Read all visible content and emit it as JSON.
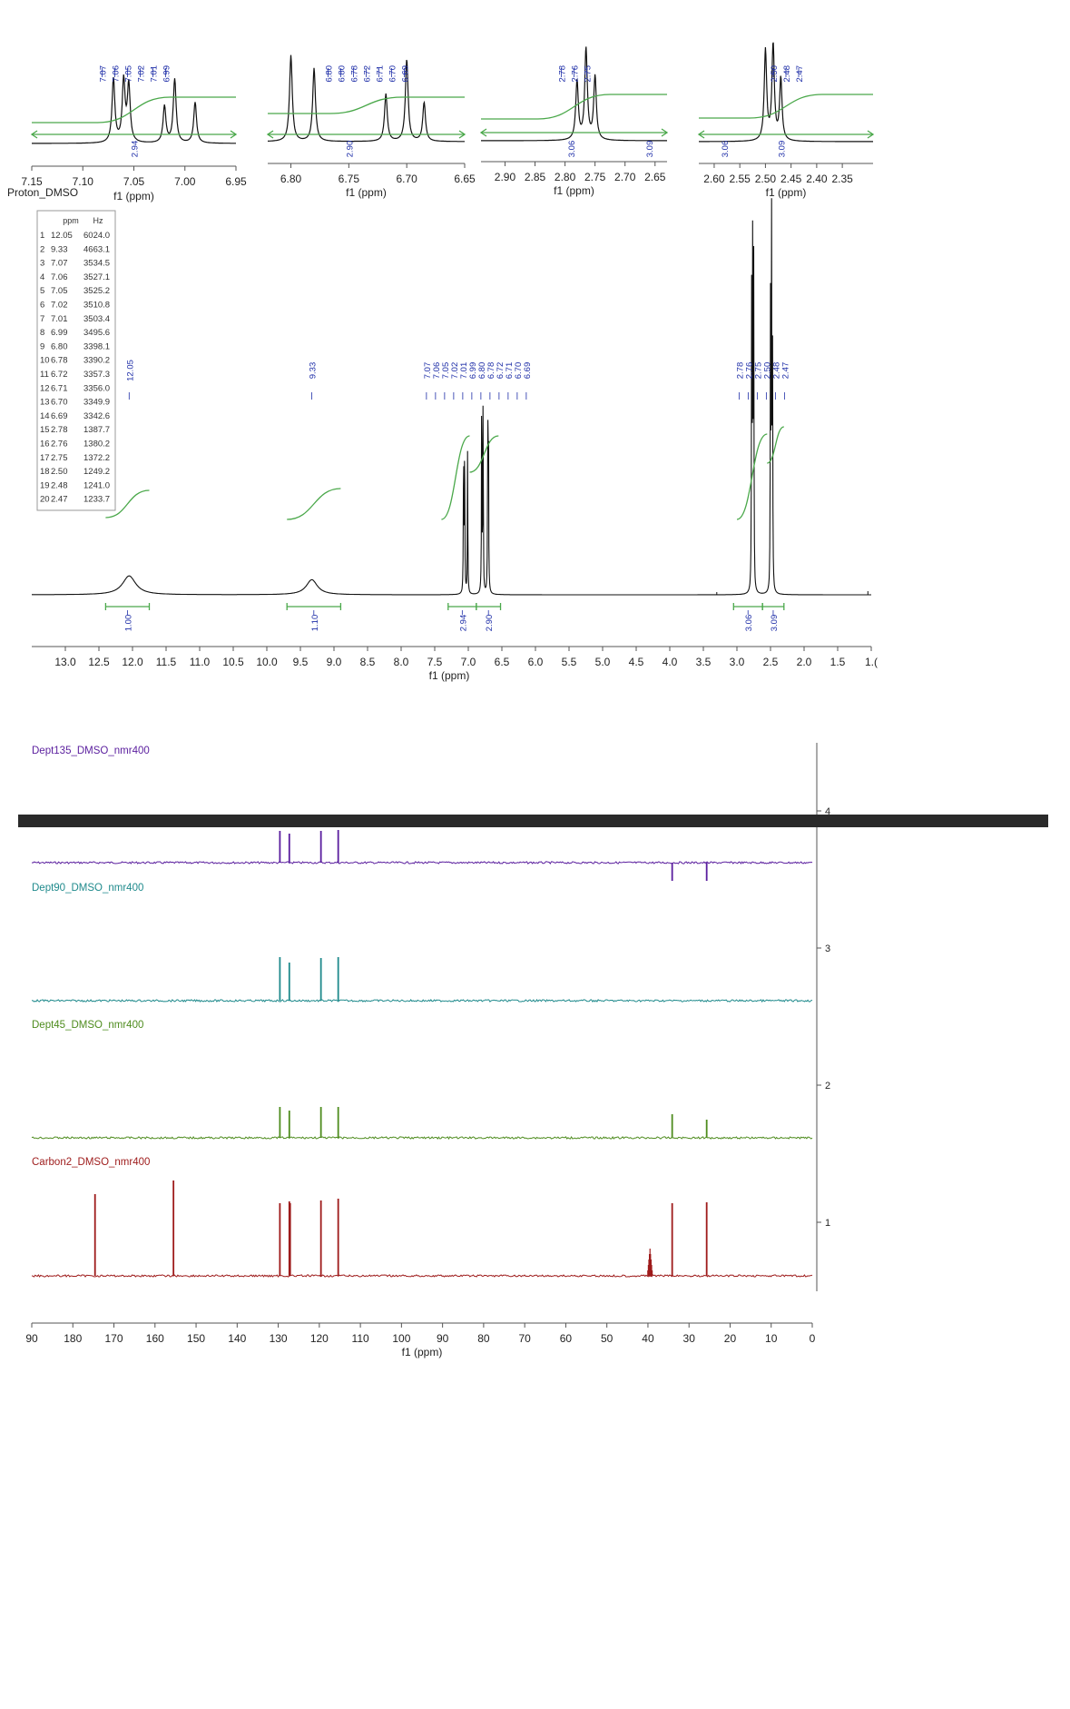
{
  "colors": {
    "peak_label": "#1e2ea8",
    "integral": "#4aa84a",
    "spectrum": "#111111",
    "dept135": "#5a1e9e",
    "dept90": "#1f8a8c",
    "dept45": "#4e8c1e",
    "carbon": "#9e1b1b",
    "separator": "#2a2a2a"
  },
  "proton_title": "Proton_DMSO",
  "x_axis_label": "f1 (ppm)",
  "peak_table": {
    "headers": [
      "ppm",
      "Hz"
    ],
    "rows": [
      [
        "1",
        "12.05",
        "6024.0"
      ],
      [
        "2",
        "9.33",
        "4663.1"
      ],
      [
        "3",
        "7.07",
        "3534.5"
      ],
      [
        "4",
        "7.06",
        "3527.1"
      ],
      [
        "5",
        "7.05",
        "3525.2"
      ],
      [
        "6",
        "7.02",
        "3510.8"
      ],
      [
        "7",
        "7.01",
        "3503.4"
      ],
      [
        "8",
        "6.99",
        "3495.6"
      ],
      [
        "9",
        "6.80",
        "3398.1"
      ],
      [
        "10",
        "6.78",
        "3390.2"
      ],
      [
        "11",
        "6.72",
        "3357.3"
      ],
      [
        "12",
        "6.71",
        "3356.0"
      ],
      [
        "13",
        "6.70",
        "3349.9"
      ],
      [
        "14",
        "6.69",
        "3342.6"
      ],
      [
        "15",
        "2.78",
        "1387.7"
      ],
      [
        "16",
        "2.76",
        "1380.2"
      ],
      [
        "17",
        "2.75",
        "1372.2"
      ],
      [
        "18",
        "2.50",
        "1249.2"
      ],
      [
        "19",
        "2.48",
        "1241.0"
      ],
      [
        "20",
        "2.47",
        "1233.7"
      ]
    ]
  },
  "chart_data": [
    {
      "id": "inset1",
      "type": "line",
      "xlim": [
        7.15,
        6.95
      ],
      "xticks": [
        "7.15",
        "7.10",
        "7.05",
        "7.00",
        "6.95"
      ],
      "peak_labels": [
        "7.07",
        "7.06",
        "7.05",
        "7.02",
        "7.01",
        "6.99"
      ],
      "peaks": [
        {
          "x": 7.07,
          "h": 0.78
        },
        {
          "x": 7.06,
          "h": 0.75
        },
        {
          "x": 7.055,
          "h": 0.7
        },
        {
          "x": 7.02,
          "h": 0.45
        },
        {
          "x": 7.01,
          "h": 0.78
        },
        {
          "x": 6.99,
          "h": 0.5
        }
      ],
      "integrals": [
        "2.94"
      ]
    },
    {
      "id": "inset2",
      "type": "line",
      "xlim": [
        6.82,
        6.65
      ],
      "xticks": [
        "6.80",
        "6.75",
        "6.70",
        "6.65"
      ],
      "peak_labels": [
        "6.80",
        "6.80",
        "6.78",
        "6.72",
        "6.71",
        "6.70",
        "6.69"
      ],
      "peaks": [
        {
          "x": 6.8,
          "h": 1.0
        },
        {
          "x": 6.78,
          "h": 0.85
        },
        {
          "x": 6.718,
          "h": 0.55
        },
        {
          "x": 6.7,
          "h": 0.95
        },
        {
          "x": 6.685,
          "h": 0.45
        }
      ],
      "integrals": [
        "2.90"
      ]
    },
    {
      "id": "inset3",
      "type": "line",
      "xlim": [
        2.94,
        2.63
      ],
      "xticks": [
        "2.90",
        "2.85",
        "2.80",
        "2.75",
        "2.70",
        "2.65"
      ],
      "peak_labels": [
        "2.78",
        "2.76",
        "2.75"
      ],
      "peaks": [
        {
          "x": 2.78,
          "h": 0.65
        },
        {
          "x": 2.765,
          "h": 1.0
        },
        {
          "x": 2.75,
          "h": 0.7
        }
      ],
      "integrals": [
        "3.06",
        "3.09"
      ]
    },
    {
      "id": "inset4",
      "type": "line",
      "xlim": [
        2.63,
        2.29
      ],
      "xticks": [
        "2.60",
        "2.55",
        "2.50",
        "2.45",
        "2.40",
        "2.35"
      ],
      "peak_labels": [
        "2.50",
        "2.48",
        "2.47"
      ],
      "peaks": [
        {
          "x": 2.5,
          "h": 0.95
        },
        {
          "x": 2.485,
          "h": 1.0
        },
        {
          "x": 2.47,
          "h": 0.65
        }
      ],
      "integrals": [
        "3.06",
        "3.09"
      ]
    },
    {
      "id": "proton_main",
      "type": "line",
      "title": "Proton_DMSO",
      "xlabel": "f1 (ppm)",
      "xlim": [
        13.5,
        1.0
      ],
      "xticks": [
        "13.0",
        "12.5",
        "12.0",
        "11.5",
        "11.0",
        "10.5",
        "10.0",
        "9.5",
        "9.0",
        "8.5",
        "8.0",
        "7.5",
        "7.0",
        "6.5",
        "6.0",
        "5.5",
        "5.0",
        "4.5",
        "4.0",
        "3.5",
        "3.0",
        "2.5",
        "2.0",
        "1.5",
        "1.("
      ],
      "peaks": [
        {
          "x": 12.05,
          "h": 0.05,
          "w": 0.12
        },
        {
          "x": 9.33,
          "h": 0.04,
          "w": 0.1
        },
        {
          "x": 7.07,
          "h": 0.4
        },
        {
          "x": 7.055,
          "h": 0.42
        },
        {
          "x": 7.01,
          "h": 0.38
        },
        {
          "x": 6.8,
          "h": 0.58
        },
        {
          "x": 6.78,
          "h": 0.52
        },
        {
          "x": 6.71,
          "h": 0.44
        },
        {
          "x": 6.7,
          "h": 0.46
        },
        {
          "x": 2.78,
          "h": 0.86
        },
        {
          "x": 2.765,
          "h": 0.9
        },
        {
          "x": 2.75,
          "h": 0.85
        },
        {
          "x": 2.5,
          "h": 0.75
        },
        {
          "x": 2.485,
          "h": 0.98
        },
        {
          "x": 2.47,
          "h": 0.68
        }
      ],
      "peak_label_groups": [
        {
          "labels": [
            "12.05"
          ]
        },
        {
          "labels": [
            "9.33"
          ]
        },
        {
          "labels": [
            "7.07",
            "7.06",
            "7.05",
            "7.02",
            "7.01",
            "6.99",
            "6.80",
            "6.78",
            "6.72",
            "6.71",
            "6.70",
            "6.69"
          ]
        },
        {
          "labels": [
            "2.78",
            "2.76",
            "2.75",
            "2.50",
            "2.48",
            "2.47"
          ]
        }
      ],
      "integrals": [
        {
          "value": "1.00",
          "from": 12.4,
          "to": 11.75
        },
        {
          "value": "1.10",
          "from": 9.7,
          "to": 8.9
        },
        {
          "value": "2.94",
          "from": 7.3,
          "to": 6.88
        },
        {
          "value": "2.90",
          "from": 6.88,
          "to": 6.52
        },
        {
          "value": "3.06",
          "from": 3.05,
          "to": 2.62
        },
        {
          "value": "3.09",
          "from": 2.62,
          "to": 2.3
        }
      ]
    },
    {
      "id": "carbon_stack",
      "type": "line",
      "xlabel": "f1 (ppm)",
      "xlim": [
        190,
        0
      ],
      "xticks": [
        "90",
        "180",
        "170",
        "160",
        "150",
        "140",
        "130",
        "120",
        "110",
        "100",
        "90",
        "80",
        "70",
        "60",
        "50",
        "40",
        "30",
        "20",
        "10",
        "0"
      ],
      "right_ticks": [
        "4",
        "3",
        "2",
        "1"
      ],
      "series": [
        {
          "name": "Dept135_DMSO_nmr400",
          "peaks": [
            {
              "x": 129.6,
              "h": 0.35
            },
            {
              "x": 127.3,
              "h": 0.32
            },
            {
              "x": 119.6,
              "h": 0.35
            },
            {
              "x": 115.4,
              "h": 0.36
            },
            {
              "x": 34.1,
              "h": -0.2
            },
            {
              "x": 25.7,
              "h": -0.2
            }
          ]
        },
        {
          "name": "Dept90_DMSO_nmr400",
          "peaks": [
            {
              "x": 129.6,
              "h": 0.48
            },
            {
              "x": 127.3,
              "h": 0.42
            },
            {
              "x": 119.6,
              "h": 0.47
            },
            {
              "x": 115.4,
              "h": 0.48
            }
          ]
        },
        {
          "name": "Dept45_DMSO_nmr400",
          "peaks": [
            {
              "x": 129.6,
              "h": 0.34
            },
            {
              "x": 127.3,
              "h": 0.3
            },
            {
              "x": 119.6,
              "h": 0.34
            },
            {
              "x": 115.4,
              "h": 0.34
            },
            {
              "x": 34.1,
              "h": 0.26
            },
            {
              "x": 25.7,
              "h": 0.2
            }
          ]
        },
        {
          "name": "Carbon2_DMSO_nmr400",
          "peaks": [
            {
              "x": 174.6,
              "h": 0.9
            },
            {
              "x": 155.5,
              "h": 1.05
            },
            {
              "x": 129.6,
              "h": 0.8
            },
            {
              "x": 127.3,
              "h": 0.82
            },
            {
              "x": 127.1,
              "h": 0.8
            },
            {
              "x": 119.6,
              "h": 0.83
            },
            {
              "x": 115.4,
              "h": 0.85
            },
            {
              "x": 39.5,
              "h": 0.3
            },
            {
              "x": 34.1,
              "h": 0.8
            },
            {
              "x": 25.7,
              "h": 0.81
            }
          ]
        }
      ]
    }
  ]
}
